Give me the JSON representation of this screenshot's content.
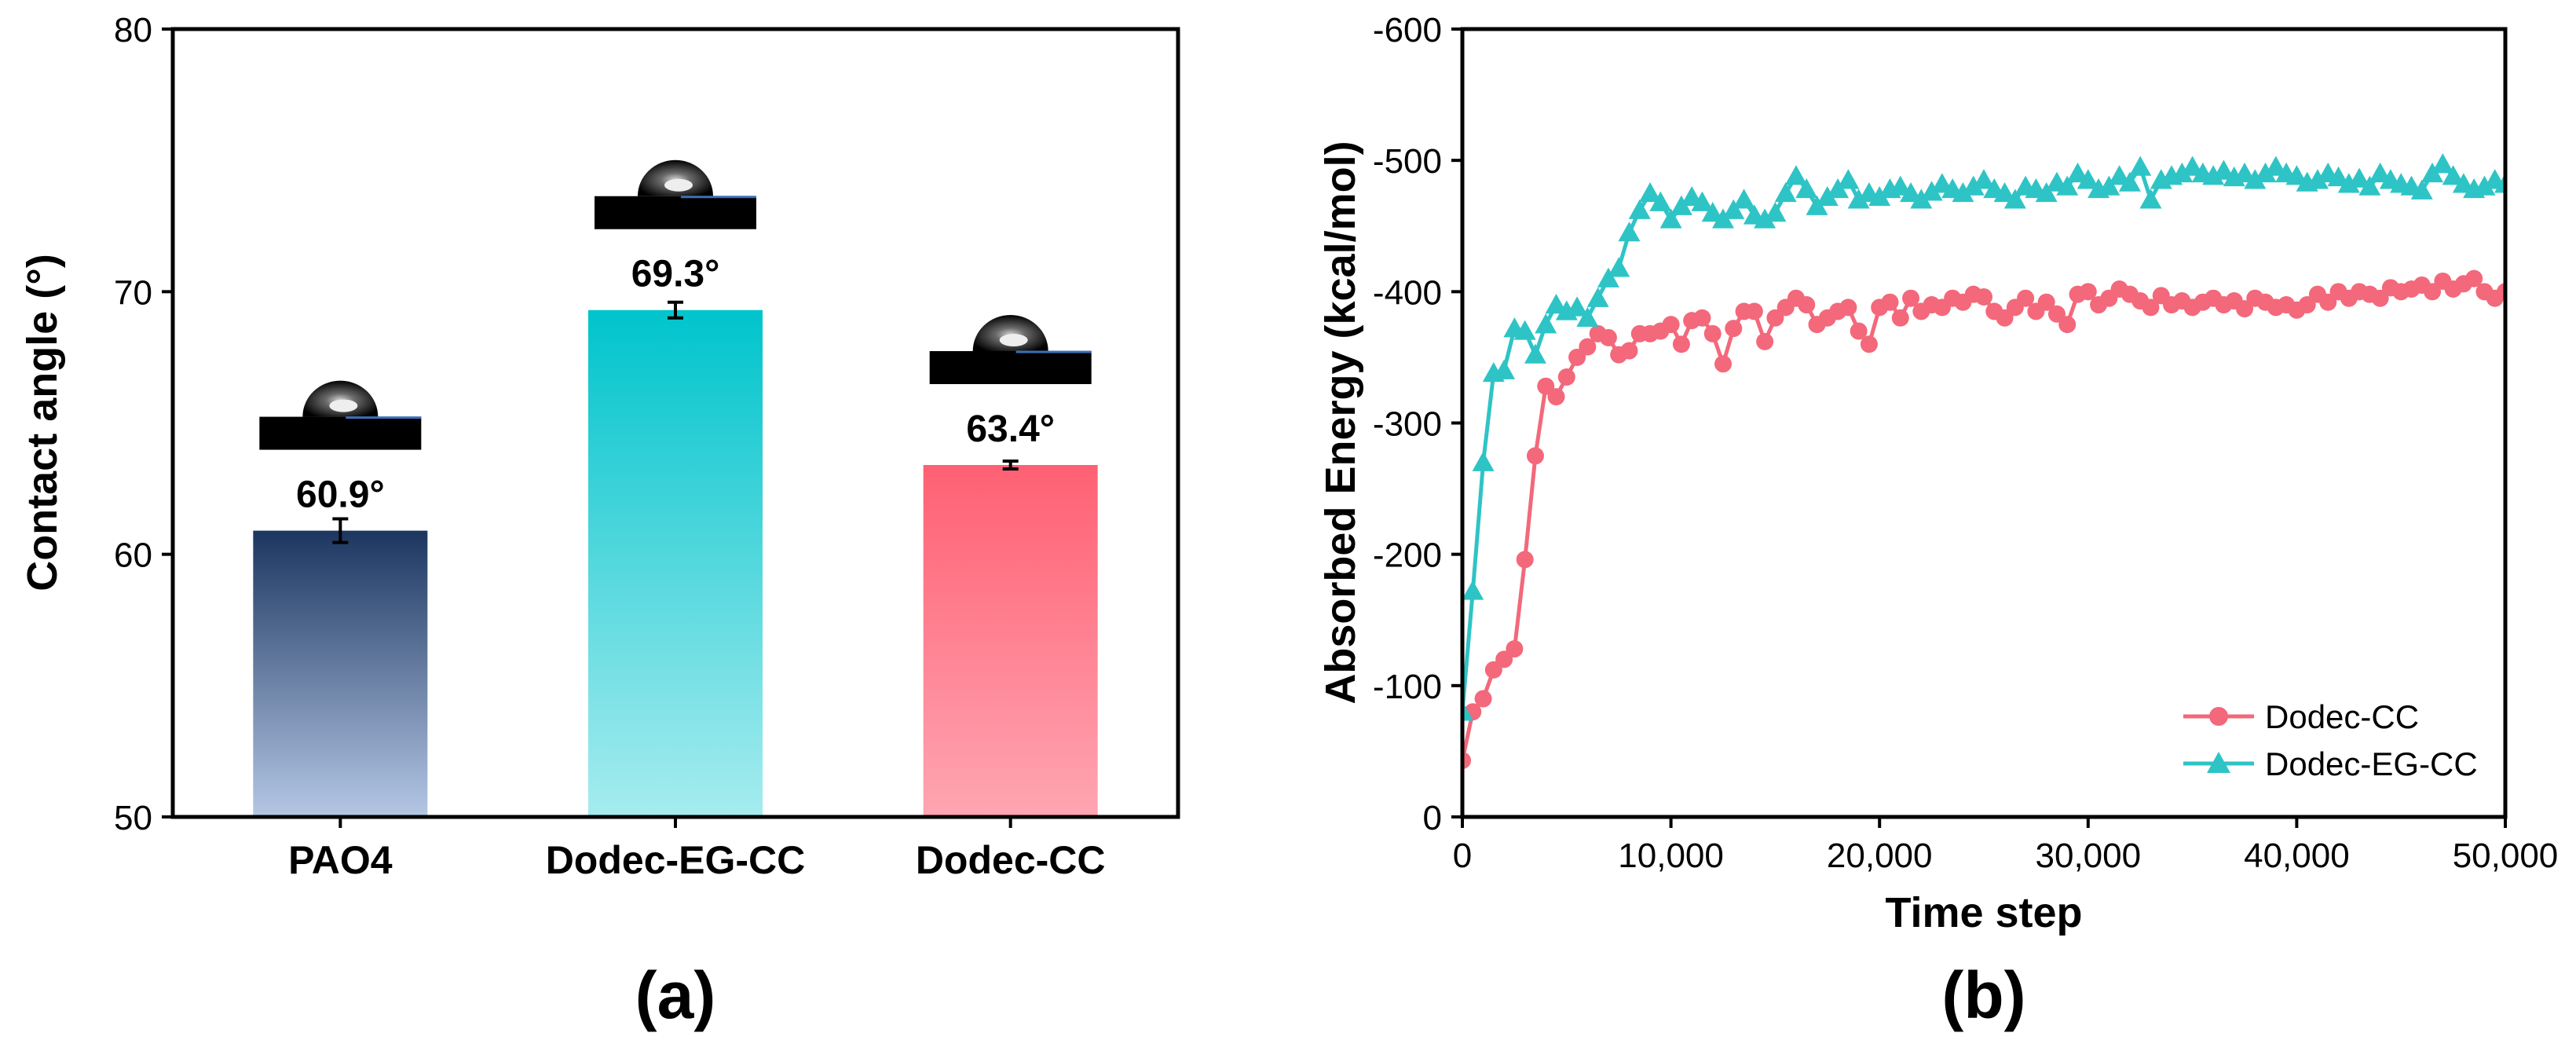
{
  "chart_data": [
    {
      "type": "bar",
      "panel_label": "(a)",
      "ylabel": "Contact angle (°)",
      "xlabel": "",
      "ylim": [
        50,
        80
      ],
      "yticks": [
        "50",
        "60",
        "70",
        "80"
      ],
      "categories": [
        "PAO4",
        "Dodec-EG-CC",
        "Dodec-CC"
      ],
      "values": [
        60.9,
        69.3,
        63.4
      ],
      "errors": [
        0.45,
        0.3,
        0.15
      ],
      "value_labels": [
        "60.9°",
        "69.3°",
        "63.4°"
      ],
      "bar_gradients": [
        [
          "#1c3660",
          "#b4c7e5"
        ],
        [
          "#00c4cc",
          "#a6ecef"
        ],
        [
          "#ff6073",
          "#ffa5b2"
        ]
      ],
      "droplet_images": [
        "droplet-icon",
        "droplet-icon",
        "droplet-icon"
      ]
    },
    {
      "type": "line",
      "panel_label": "(b)",
      "xlabel": "Time step",
      "ylabel": "Absorbed Energy (kcal/mol)",
      "xlim": [
        0,
        50000
      ],
      "ylim": [
        0,
        -600
      ],
      "xticks": [
        "0",
        "10,000",
        "20,000",
        "30,000",
        "40,000",
        "50,000"
      ],
      "yticks": [
        "0",
        "-100",
        "-200",
        "-300",
        "-400",
        "-500",
        "-600"
      ],
      "legend_position": "bottom-right",
      "series": [
        {
          "name": "Dodec-CC",
          "color": "#f3687a",
          "marker": "circle",
          "x": [
            0,
            500,
            1000,
            1500,
            2000,
            2500,
            3000,
            3500,
            4000,
            4500,
            5000,
            5500,
            6000,
            6500,
            7000,
            7500,
            8000,
            8500,
            9000,
            9500,
            10000,
            10500,
            11000,
            11500,
            12000,
            12500,
            13000,
            13500,
            14000,
            14500,
            15000,
            15500,
            16000,
            16500,
            17000,
            17500,
            18000,
            18500,
            19000,
            19500,
            20000,
            20500,
            21000,
            21500,
            22000,
            22500,
            23000,
            23500,
            24000,
            24500,
            25000,
            25500,
            26000,
            26500,
            27000,
            27500,
            28000,
            28500,
            29000,
            29500,
            30000,
            30500,
            31000,
            31500,
            32000,
            32500,
            33000,
            33500,
            34000,
            34500,
            35000,
            35500,
            36000,
            36500,
            37000,
            37500,
            38000,
            38500,
            39000,
            39500,
            40000,
            40500,
            41000,
            41500,
            42000,
            42500,
            43000,
            43500,
            44000,
            44500,
            45000,
            45500,
            46000,
            46500,
            47000,
            47500,
            48000,
            48500,
            49000,
            49500,
            50000
          ],
          "y": [
            -43,
            -80,
            -90,
            -112,
            -120,
            -128,
            -196,
            -275,
            -328,
            -320,
            -335,
            -350,
            -358,
            -368,
            -365,
            -352,
            -355,
            -368,
            -368,
            -370,
            -375,
            -360,
            -378,
            -380,
            -368,
            -345,
            -372,
            -385,
            -385,
            -362,
            -380,
            -388,
            -395,
            -390,
            -375,
            -380,
            -385,
            -388,
            -370,
            -360,
            -388,
            -392,
            -380,
            -395,
            -385,
            -390,
            -388,
            -395,
            -392,
            -398,
            -396,
            -385,
            -380,
            -388,
            -395,
            -385,
            -392,
            -383,
            -375,
            -398,
            -400,
            -390,
            -395,
            -402,
            -398,
            -393,
            -388,
            -397,
            -390,
            -393,
            -388,
            -392,
            -395,
            -390,
            -393,
            -387,
            -395,
            -392,
            -388,
            -390,
            -386,
            -390,
            -398,
            -392,
            -400,
            -395,
            -400,
            -398,
            -395,
            -403,
            -400,
            -402,
            -405,
            -400,
            -408,
            -402,
            -406,
            -410,
            -400,
            -395,
            -400
          ]
        },
        {
          "name": "Dodec-EG-CC",
          "color": "#2ec4c6",
          "marker": "triangle",
          "x": [
            0,
            500,
            1000,
            1500,
            2000,
            2500,
            3000,
            3500,
            4000,
            4500,
            5000,
            5500,
            6000,
            6500,
            7000,
            7500,
            8000,
            8500,
            9000,
            9500,
            10000,
            10500,
            11000,
            11500,
            12000,
            12500,
            13000,
            13500,
            14000,
            14500,
            15000,
            15500,
            16000,
            16500,
            17000,
            17500,
            18000,
            18500,
            19000,
            19500,
            20000,
            20500,
            21000,
            21500,
            22000,
            22500,
            23000,
            23500,
            24000,
            24500,
            25000,
            25500,
            26000,
            26500,
            27000,
            27500,
            28000,
            28500,
            29000,
            29500,
            30000,
            30500,
            31000,
            31500,
            32000,
            32500,
            33000,
            33500,
            34000,
            34500,
            35000,
            35500,
            36000,
            36500,
            37000,
            37500,
            38000,
            38500,
            39000,
            39500,
            40000,
            40500,
            41000,
            41500,
            42000,
            42500,
            43000,
            43500,
            44000,
            44500,
            45000,
            45500,
            46000,
            46500,
            47000,
            47500,
            48000,
            48500,
            49000,
            49500,
            50000
          ],
          "y": [
            -80,
            -172,
            -270,
            -338,
            -340,
            -372,
            -370,
            -352,
            -375,
            -390,
            -385,
            -388,
            -380,
            -395,
            -410,
            -418,
            -445,
            -462,
            -475,
            -468,
            -455,
            -465,
            -472,
            -468,
            -460,
            -455,
            -462,
            -470,
            -458,
            -455,
            -460,
            -475,
            -488,
            -478,
            -465,
            -472,
            -478,
            -485,
            -470,
            -475,
            -472,
            -478,
            -480,
            -475,
            -470,
            -476,
            -482,
            -478,
            -475,
            -480,
            -485,
            -478,
            -475,
            -470,
            -480,
            -478,
            -475,
            -483,
            -480,
            -490,
            -485,
            -478,
            -480,
            -488,
            -483,
            -495,
            -470,
            -485,
            -488,
            -490,
            -495,
            -490,
            -488,
            -492,
            -487,
            -490,
            -485,
            -490,
            -495,
            -490,
            -488,
            -483,
            -485,
            -490,
            -487,
            -482,
            -486,
            -480,
            -490,
            -485,
            -482,
            -480,
            -477,
            -490,
            -497,
            -488,
            -482,
            -478,
            -480,
            -485,
            -482
          ]
        }
      ]
    }
  ]
}
